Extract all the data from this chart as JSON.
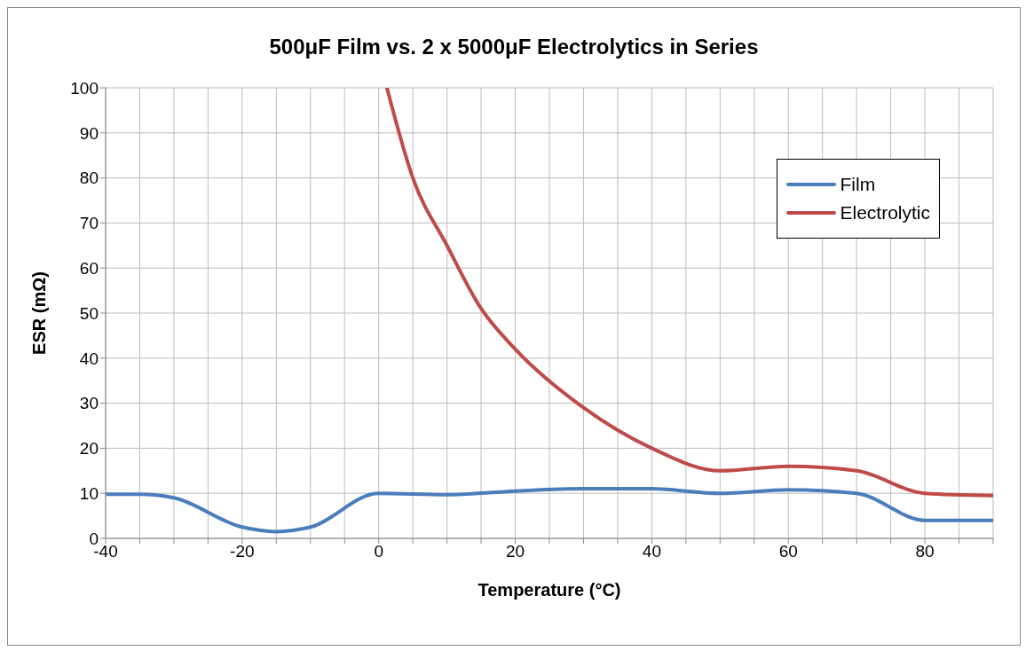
{
  "chart_data": {
    "type": "line",
    "title": "500μF Film vs. 2 x 5000μF Electrolytics in Series",
    "xlabel": "Temperature (°C)",
    "ylabel": "ESR (mΩ)",
    "xlim": [
      -40,
      90
    ],
    "xticks": [
      -40,
      {
        "value": -35,
        "label": null
      },
      {
        "value": -30,
        "label": null
      },
      {
        "value": -25,
        "label": null
      },
      -20,
      {
        "value": -15,
        "label": null
      },
      {
        "value": -10,
        "label": null
      },
      {
        "value": -5,
        "label": null
      },
      0,
      {
        "value": 5,
        "label": null
      },
      {
        "value": 10,
        "label": null
      },
      {
        "value": 15,
        "label": null
      },
      20,
      {
        "value": 25,
        "label": null
      },
      {
        "value": 30,
        "label": null
      },
      {
        "value": 35,
        "label": null
      },
      40,
      {
        "value": 45,
        "label": null
      },
      {
        "value": 50,
        "label": null
      },
      {
        "value": 55,
        "label": null
      },
      60,
      {
        "value": 65,
        "label": null
      },
      {
        "value": 70,
        "label": null
      },
      {
        "value": 75,
        "label": null
      },
      80,
      {
        "value": 85,
        "label": null
      },
      {
        "value": 90,
        "label": null
      }
    ],
    "ylim": [
      0,
      100
    ],
    "yticks": [
      0,
      10,
      20,
      30,
      40,
      50,
      60,
      70,
      80,
      90,
      100
    ],
    "grid": true,
    "legend": "top right",
    "marker": "none",
    "line_style": "solid",
    "series": [
      {
        "name": "Film",
        "color": "#4a7ebb",
        "x": [
          -40,
          -35,
          -30,
          -20,
          -15,
          -10,
          0,
          10,
          20,
          30,
          40,
          50,
          60,
          70,
          80,
          90
        ],
        "values": [
          9.8,
          9.8,
          9,
          2.5,
          1.5,
          2.5,
          10,
          9.7,
          10.5,
          11,
          11,
          10,
          10.8,
          10,
          4,
          4
        ]
      },
      {
        "name": "Electrolytic",
        "color": "#be4b48",
        "x": [
          1.2,
          5,
          10,
          15,
          20,
          30,
          40,
          50,
          60,
          70,
          80,
          90
        ],
        "values": [
          100,
          80,
          65,
          51,
          42,
          29,
          20,
          15,
          16,
          15,
          10,
          9.5
        ]
      }
    ]
  }
}
